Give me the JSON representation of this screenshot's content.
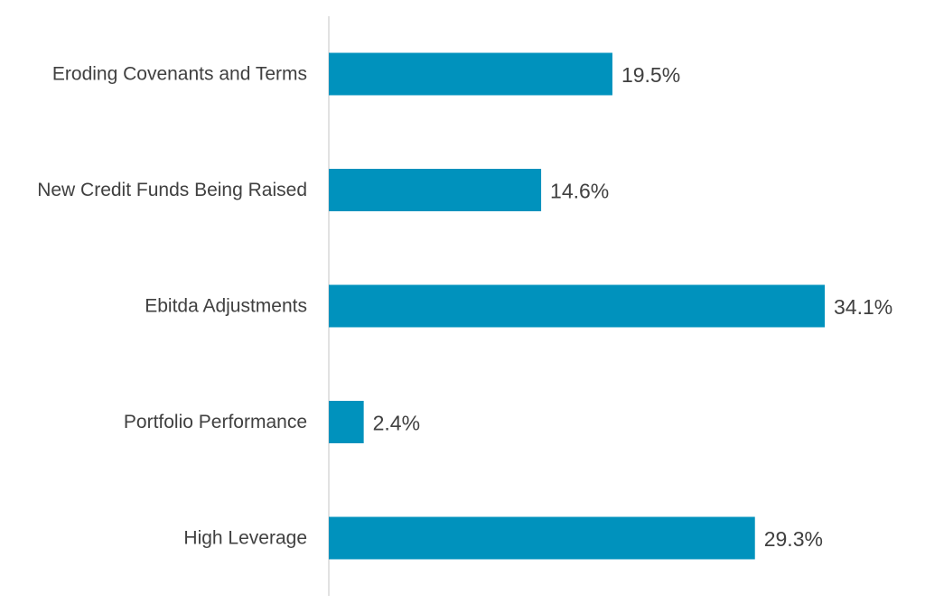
{
  "chart_data": {
    "type": "bar",
    "orientation": "horizontal",
    "categories": [
      "Eroding Covenants and Terms",
      "New Credit Funds Being Raised",
      "Ebitda Adjustments",
      "Portfolio Performance",
      "High Leverage"
    ],
    "values": [
      19.5,
      14.6,
      34.1,
      2.4,
      29.3
    ],
    "value_labels": [
      "19.5%",
      "14.6%",
      "34.1%",
      "2.4%",
      "29.3%"
    ],
    "unit": "%",
    "title": "",
    "xlabel": "",
    "ylabel": "",
    "xlim": [
      0,
      35
    ],
    "grid": false,
    "legend": "none",
    "colors": {
      "bar": "#0092BD",
      "axis": "#D9D9D9",
      "text": "#404040"
    }
  }
}
